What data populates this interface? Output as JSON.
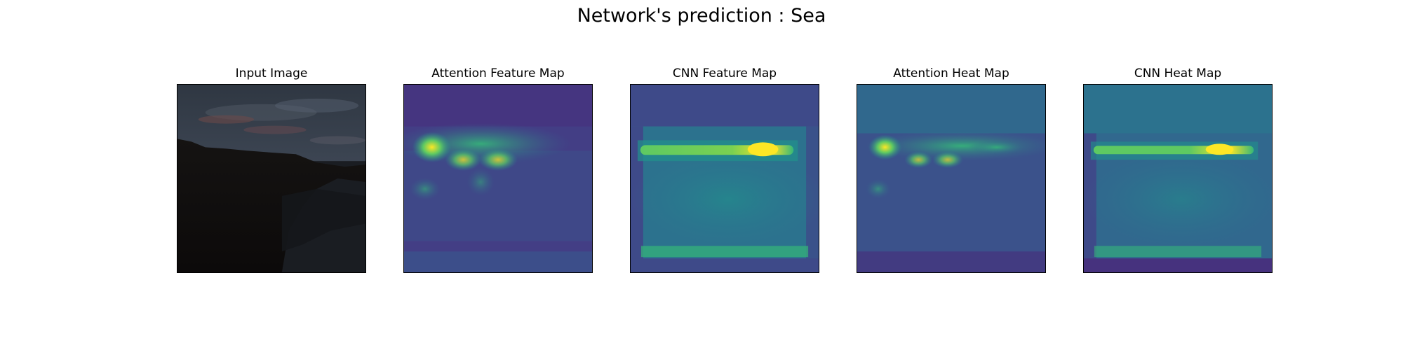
{
  "figure": {
    "suptitle": "Network's prediction : Sea",
    "panels": [
      {
        "title": "Input Image"
      },
      {
        "title": "Attention Feature Map"
      },
      {
        "title": "CNN Feature Map"
      },
      {
        "title": "Attention Heat Map"
      },
      {
        "title": "CNN Heat Map"
      }
    ]
  },
  "colors": {
    "viridis_low": "#440154",
    "viridis_mid": "#21918c",
    "viridis_high": "#fde725",
    "photo_sky": "#3a4350",
    "photo_land": "#0f0d0c"
  }
}
